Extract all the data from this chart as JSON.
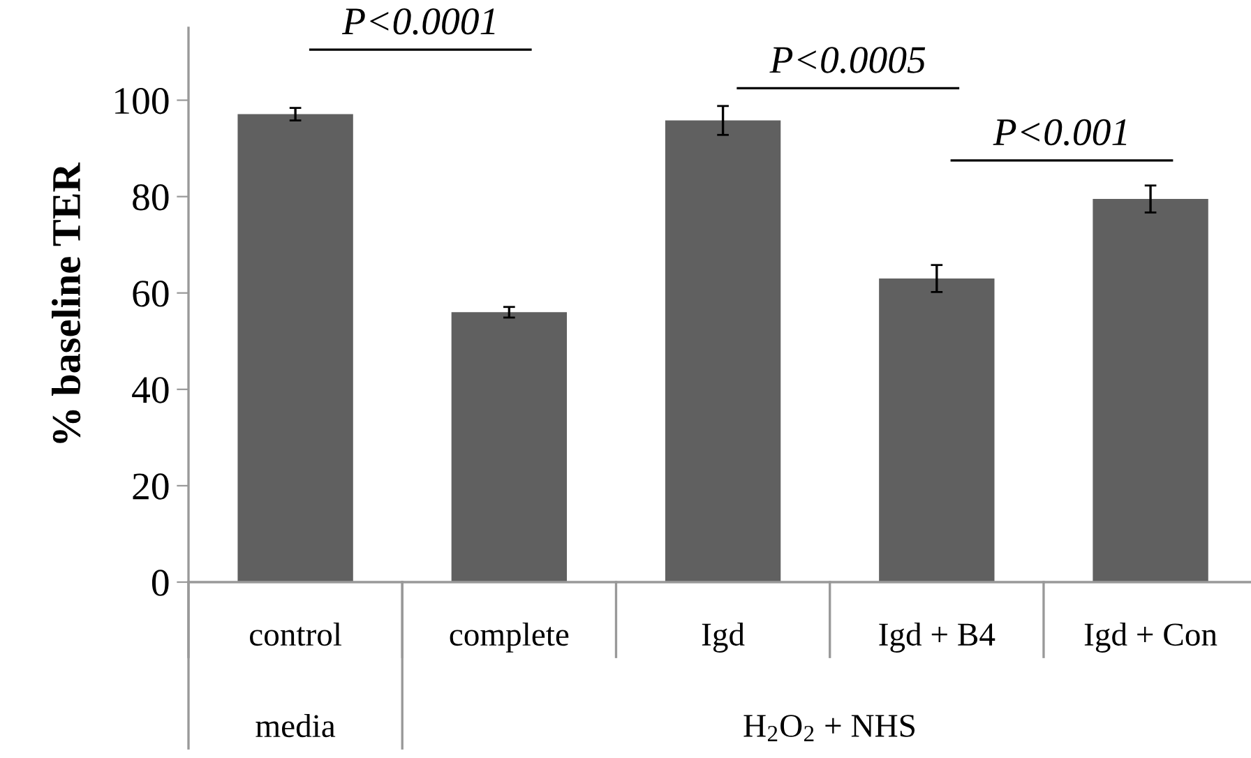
{
  "chart_data": {
    "type": "bar",
    "ylabel": "% baseline TER",
    "categories": [
      "control",
      "complete",
      "Igd",
      "Igd + B4",
      "Igd + Con"
    ],
    "values": [
      97.1,
      56.0,
      95.8,
      63.0,
      79.5
    ],
    "errors": [
      1.3,
      1.1,
      3.0,
      2.8,
      2.8
    ],
    "color": "#606060",
    "ylim": [
      0,
      115
    ],
    "yticks": [
      0,
      20,
      40,
      60,
      80,
      100
    ],
    "grid": false,
    "annotations": [
      "P<0.0001",
      "P<0.0005",
      "P<0.001",
      "media",
      "H$_{2}$O$_{2}$ + NHS"
    ]
  }
}
